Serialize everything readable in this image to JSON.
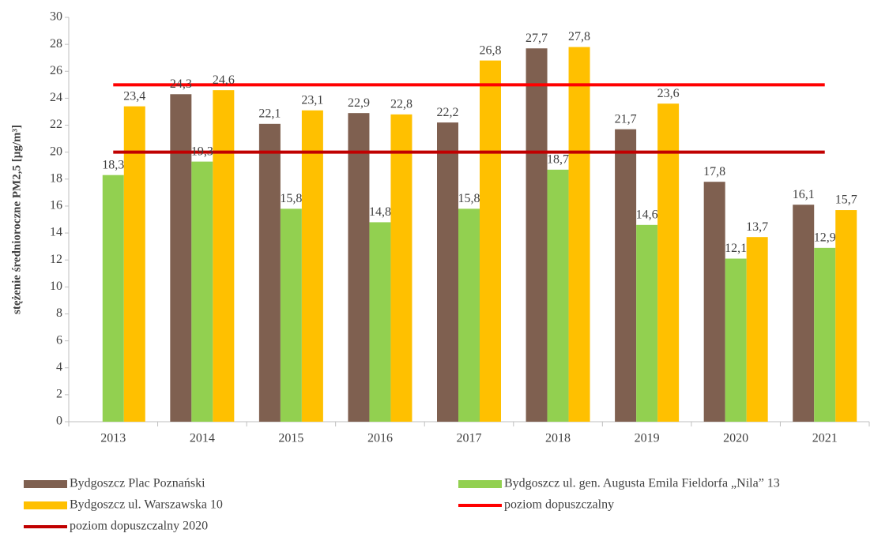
{
  "chart_data": {
    "type": "bar",
    "y_axis_label": "stężenie średnioroczne PM2,5 [µg/m³]",
    "categories": [
      "2013",
      "2014",
      "2015",
      "2016",
      "2017",
      "2018",
      "2019",
      "2020",
      "2021"
    ],
    "series": [
      {
        "name": "Bydgoszcz Plac Poznański",
        "type": "bar",
        "color": "#7f6050",
        "values": [
          null,
          24.3,
          22.1,
          22.9,
          22.2,
          27.7,
          21.7,
          17.8,
          16.1
        ],
        "value_labels": [
          null,
          "24,3",
          "22,1",
          "22,9",
          "22,2",
          "27,7",
          "21,7",
          "17,8",
          "16,1"
        ]
      },
      {
        "name": "Bydgoszcz ul. gen. Augusta Emila Fieldorfa „Nila” 13",
        "type": "bar",
        "color": "#92d050",
        "values": [
          18.3,
          19.3,
          15.8,
          14.8,
          15.8,
          18.7,
          14.6,
          12.1,
          12.9
        ],
        "value_labels": [
          "18,3",
          "19,3",
          "15,8",
          "14,8",
          "15,8",
          "18,7",
          "14,6",
          "12,1",
          "12,9"
        ]
      },
      {
        "name": "Bydgoszcz ul. Warszawska 10",
        "type": "bar",
        "color": "#ffc000",
        "values": [
          23.4,
          24.6,
          23.1,
          22.8,
          26.8,
          27.8,
          23.6,
          13.7,
          15.7
        ],
        "value_labels": [
          "23,4",
          "24,6",
          "23,1",
          "22,8",
          "26,8",
          "27,8",
          "23,6",
          "13,7",
          "15,7"
        ]
      },
      {
        "name": "poziom dopuszczalny",
        "type": "line",
        "color": "#ff0000",
        "values": [
          25,
          25,
          25,
          25,
          25,
          25,
          25,
          25,
          25
        ]
      },
      {
        "name": "poziom dopuszczalny 2020",
        "type": "line",
        "color": "#c00000",
        "values": [
          20,
          20,
          20,
          20,
          20,
          20,
          20,
          20,
          20
        ]
      }
    ],
    "ylim": [
      0,
      30
    ],
    "yticks": [
      0,
      2,
      4,
      6,
      8,
      10,
      12,
      14,
      16,
      18,
      20,
      22,
      24,
      26,
      28,
      30
    ]
  }
}
